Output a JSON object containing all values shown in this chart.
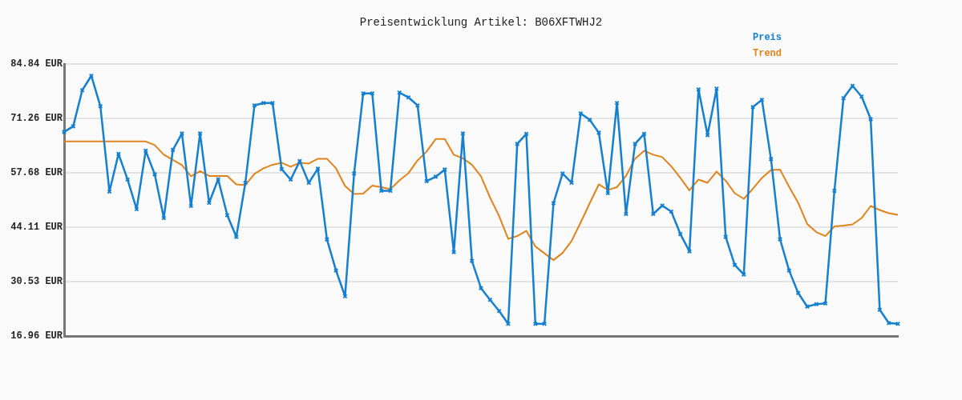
{
  "chart_data": {
    "type": "line",
    "title": "Preisentwicklung Artikel: B06XFTWHJ2",
    "categories": [
      null,
      null,
      null,
      null,
      null,
      null,
      null,
      null,
      null,
      null,
      null,
      null,
      null,
      null,
      null,
      null,
      null,
      null,
      null,
      null,
      null,
      null,
      null,
      null,
      null,
      null,
      null,
      null,
      null,
      null,
      null,
      null,
      null,
      null,
      null,
      null,
      null,
      null,
      null,
      null,
      null,
      null,
      null,
      null,
      null,
      null,
      null,
      null,
      null,
      null,
      null,
      null,
      null,
      null,
      null,
      null,
      null,
      null,
      null,
      null,
      null,
      null,
      null,
      null,
      null,
      null,
      null,
      null,
      null,
      null,
      null,
      null,
      null,
      null,
      null,
      null,
      null,
      null,
      null,
      null,
      null,
      null,
      null,
      null,
      null,
      null,
      null,
      null,
      null,
      null,
      null,
      null,
      null
    ],
    "series": [
      {
        "name": "Preis",
        "color": "#1580cf",
        "marker": "cross",
        "values": [
          67.9,
          69.3,
          78.3,
          81.9,
          74.3,
          53.0,
          62.4,
          56.0,
          48.6,
          63.2,
          57.3,
          46.4,
          63.4,
          67.5,
          49.4,
          67.5,
          50.2,
          56.1,
          47.1,
          41.7,
          55.2,
          74.5,
          75.1,
          75.1,
          58.6,
          56.0,
          60.6,
          55.2,
          58.7,
          41.1,
          33.3,
          26.9,
          57.5,
          77.5,
          77.5,
          53.2,
          53.2,
          77.7,
          76.5,
          74.5,
          55.6,
          56.7,
          58.5,
          37.9,
          67.5,
          35.7,
          28.9,
          26.0,
          23.2,
          20.0,
          64.9,
          67.4,
          20.0,
          20.0,
          50.1,
          57.5,
          55.2,
          72.5,
          70.9,
          67.7,
          52.6,
          75.1,
          47.4,
          64.9,
          67.4,
          47.4,
          49.5,
          48.0,
          42.4,
          38.1,
          78.5,
          67.1,
          78.7,
          41.7,
          34.7,
          32.3,
          74.1,
          75.9,
          61.1,
          41.1,
          33.3,
          27.7,
          24.3,
          24.9,
          25.1,
          53.2,
          76.3,
          79.4,
          76.7,
          71.1,
          23.5,
          20.2,
          20.0
        ]
      },
      {
        "name": "Trend",
        "color": "#e0831a",
        "marker": "none",
        "values": [
          65.5,
          65.5,
          65.5,
          65.5,
          65.5,
          65.5,
          65.5,
          65.5,
          65.5,
          65.5,
          64.6,
          62.2,
          60.9,
          59.6,
          56.8,
          58.1,
          56.9,
          56.9,
          56.9,
          54.8,
          54.6,
          57.4,
          58.8,
          59.7,
          60.2,
          59.2,
          60.2,
          60.0,
          61.2,
          61.2,
          58.8,
          54.4,
          52.4,
          52.5,
          54.5,
          54.1,
          53.6,
          55.8,
          57.6,
          60.8,
          63.0,
          66.1,
          66.1,
          62.2,
          61.3,
          59.7,
          56.8,
          51.5,
          46.9,
          41.2,
          41.9,
          43.2,
          39.3,
          37.6,
          35.9,
          37.7,
          40.7,
          45.3,
          50.1,
          54.8,
          53.4,
          54.1,
          56.9,
          61.2,
          63.2,
          62.2,
          61.6,
          59.3,
          56.4,
          53.3,
          56.0,
          55.2,
          58.0,
          55.7,
          52.6,
          51.2,
          53.7,
          56.4,
          58.4,
          58.5,
          54.2,
          50.2,
          44.9,
          42.9,
          41.9,
          44.3,
          44.5,
          44.8,
          46.4,
          49.4,
          48.4,
          47.6,
          47.2
        ]
      }
    ],
    "ylim": [
      16.96,
      84.84
    ],
    "yticks": [
      {
        "value": 16.96,
        "label": "16.96 EUR"
      },
      {
        "value": 30.53,
        "label": "30.53 EUR"
      },
      {
        "value": 44.11,
        "label": "44.11 EUR"
      },
      {
        "value": 57.68,
        "label": "57.68 EUR"
      },
      {
        "value": 71.26,
        "label": "71.26 EUR"
      },
      {
        "value": 84.84,
        "label": "84.84 EUR"
      }
    ],
    "grid": "y",
    "legend": "top right",
    "line_style": "solid"
  }
}
